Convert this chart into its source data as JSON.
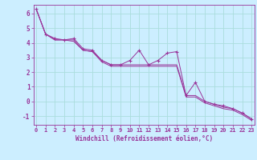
{
  "title": "",
  "xlabel": "Windchill (Refroidissement éolien,°C)",
  "ylabel": "",
  "background_color": "#cceeff",
  "grid_color": "#aadddd",
  "line_color": "#993399",
  "marker_color": "#993399",
  "x_ticks": [
    0,
    1,
    2,
    3,
    4,
    5,
    6,
    7,
    8,
    9,
    10,
    11,
    12,
    13,
    14,
    15,
    16,
    17,
    18,
    19,
    20,
    21,
    22,
    23
  ],
  "y_ticks": [
    -1,
    0,
    1,
    2,
    3,
    4,
    5,
    6
  ],
  "ylim": [
    -1.6,
    6.6
  ],
  "xlim": [
    -0.3,
    23.3
  ],
  "series": [
    [
      6.3,
      4.6,
      4.3,
      4.2,
      4.3,
      3.6,
      3.5,
      2.8,
      2.5,
      2.5,
      2.8,
      3.5,
      2.5,
      2.8,
      3.3,
      3.4,
      0.4,
      1.3,
      0.0,
      -0.2,
      -0.3,
      -0.5,
      -0.8,
      -1.2
    ],
    [
      6.3,
      4.6,
      4.2,
      4.2,
      4.1,
      3.5,
      3.4,
      2.7,
      2.4,
      2.4,
      2.4,
      2.4,
      2.4,
      2.4,
      2.4,
      2.4,
      0.3,
      0.3,
      -0.1,
      -0.3,
      -0.5,
      -0.6,
      -0.9,
      -1.3
    ],
    [
      6.3,
      4.6,
      4.2,
      4.2,
      4.2,
      3.5,
      3.4,
      2.8,
      2.5,
      2.5,
      2.5,
      2.5,
      2.5,
      2.5,
      2.5,
      2.5,
      0.4,
      0.4,
      0.0,
      -0.2,
      -0.4,
      -0.5,
      -0.8,
      -1.2
    ]
  ],
  "has_markers": [
    true,
    false,
    false
  ],
  "line_styles": [
    "-",
    "-",
    "-"
  ],
  "marker_style": "+",
  "tick_fontsize": 5,
  "xlabel_fontsize": 5.5
}
